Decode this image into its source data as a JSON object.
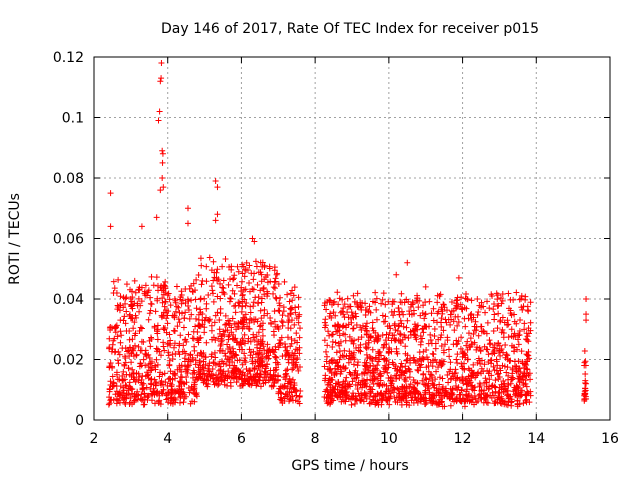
{
  "chart_data": {
    "type": "scatter",
    "title": "Day 146 of 2017, Rate Of TEC Index for receiver p015",
    "xlabel": "GPS time / hours",
    "ylabel": "ROTI / TECUs",
    "xlim": [
      2,
      16
    ],
    "ylim": [
      0,
      0.12
    ],
    "xticks": [
      2,
      4,
      6,
      8,
      10,
      12,
      14,
      16
    ],
    "yticks": [
      0,
      0.02,
      0.04,
      0.06,
      0.08,
      0.1,
      0.12
    ],
    "ytick_labels": [
      "0",
      "0.02",
      "0.04",
      "0.06",
      "0.08",
      "0.1",
      "0.12"
    ],
    "grid": true,
    "marker": "+",
    "color": "#ff0000",
    "segments": [
      {
        "start": 2.4,
        "end": 7.6,
        "base": 0.012,
        "spread": 0.018
      },
      {
        "start": 8.25,
        "end": 13.85,
        "base": 0.011,
        "spread": 0.016
      },
      {
        "start": 15.3,
        "end": 15.35,
        "base": 0.012,
        "spread": 0.008
      }
    ],
    "notable_points": [
      {
        "x": 2.45,
        "y": 0.075
      },
      {
        "x": 2.45,
        "y": 0.064
      },
      {
        "x": 3.3,
        "y": 0.064
      },
      {
        "x": 3.7,
        "y": 0.067
      },
      {
        "x": 3.75,
        "y": 0.099
      },
      {
        "x": 3.78,
        "y": 0.102
      },
      {
        "x": 3.8,
        "y": 0.112
      },
      {
        "x": 3.82,
        "y": 0.113
      },
      {
        "x": 3.83,
        "y": 0.118
      },
      {
        "x": 3.85,
        "y": 0.089
      },
      {
        "x": 3.87,
        "y": 0.088
      },
      {
        "x": 3.86,
        "y": 0.085
      },
      {
        "x": 3.85,
        "y": 0.08
      },
      {
        "x": 3.88,
        "y": 0.077
      },
      {
        "x": 3.8,
        "y": 0.076
      },
      {
        "x": 4.55,
        "y": 0.07
      },
      {
        "x": 4.55,
        "y": 0.065
      },
      {
        "x": 5.3,
        "y": 0.079
      },
      {
        "x": 5.35,
        "y": 0.077
      },
      {
        "x": 5.35,
        "y": 0.068
      },
      {
        "x": 5.3,
        "y": 0.066
      },
      {
        "x": 6.3,
        "y": 0.06
      },
      {
        "x": 6.35,
        "y": 0.059
      },
      {
        "x": 10.2,
        "y": 0.048
      },
      {
        "x": 10.5,
        "y": 0.052
      },
      {
        "x": 11.0,
        "y": 0.044
      },
      {
        "x": 11.9,
        "y": 0.047
      },
      {
        "x": 12.4,
        "y": 0.04
      },
      {
        "x": 12.8,
        "y": 0.041
      },
      {
        "x": 15.35,
        "y": 0.04
      },
      {
        "x": 15.35,
        "y": 0.035
      },
      {
        "x": 15.35,
        "y": 0.033
      },
      {
        "x": 15.3,
        "y": 0.018
      },
      {
        "x": 15.35,
        "y": 0.012
      },
      {
        "x": 15.3,
        "y": 0.008
      },
      {
        "x": 15.35,
        "y": 0.007
      }
    ]
  }
}
